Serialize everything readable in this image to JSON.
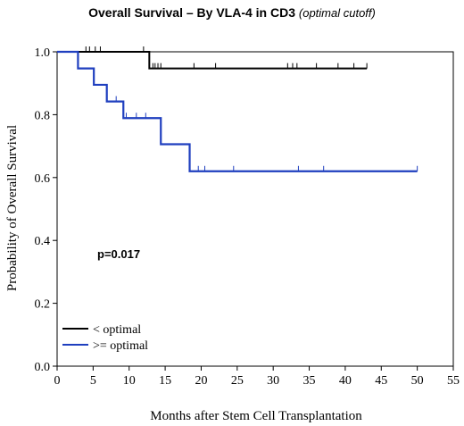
{
  "title": {
    "main": "Overall Survival – By VLA-4 in CD3",
    "sub": "(optimal cutoff)"
  },
  "annotation": "p=0.017",
  "chart_data": {
    "type": "line",
    "step": true,
    "xlabel": "Months after Stem Cell Transplantation",
    "ylabel": "Probability of Overall Survival",
    "xlim": [
      0,
      55
    ],
    "ylim": [
      0,
      1
    ],
    "x_ticks": [
      0,
      5,
      10,
      15,
      20,
      25,
      30,
      35,
      40,
      45,
      50,
      55
    ],
    "y_ticks": [
      "0.0",
      "0.2",
      "0.4",
      "0.6",
      "0.8",
      "1.0"
    ],
    "grid": false,
    "legend_position": "bottom-left",
    "series": [
      {
        "name": "< optimal",
        "color": "#000000",
        "steps": [
          [
            0,
            1.0
          ],
          [
            12.8,
            0.947
          ],
          [
            43,
            0.947
          ]
        ],
        "censored": [
          4,
          4.5,
          5.3,
          6,
          12,
          13.3,
          13.6,
          14,
          14.4,
          19,
          22,
          32,
          32.7,
          33.3,
          36,
          39,
          41.2,
          43
        ]
      },
      {
        "name": ">= optimal",
        "color": "#1f3fbf",
        "steps": [
          [
            0,
            1.0
          ],
          [
            2.9,
            0.947
          ],
          [
            5.1,
            0.895
          ],
          [
            6.9,
            0.842
          ],
          [
            9.2,
            0.789
          ],
          [
            14.4,
            0.706
          ],
          [
            18.4,
            0.62
          ],
          [
            50,
            0.62
          ]
        ],
        "censored": [
          8.2,
          9.6,
          11,
          12.3,
          19.6,
          20.5,
          24.5,
          33.5,
          37,
          50
        ]
      }
    ]
  }
}
